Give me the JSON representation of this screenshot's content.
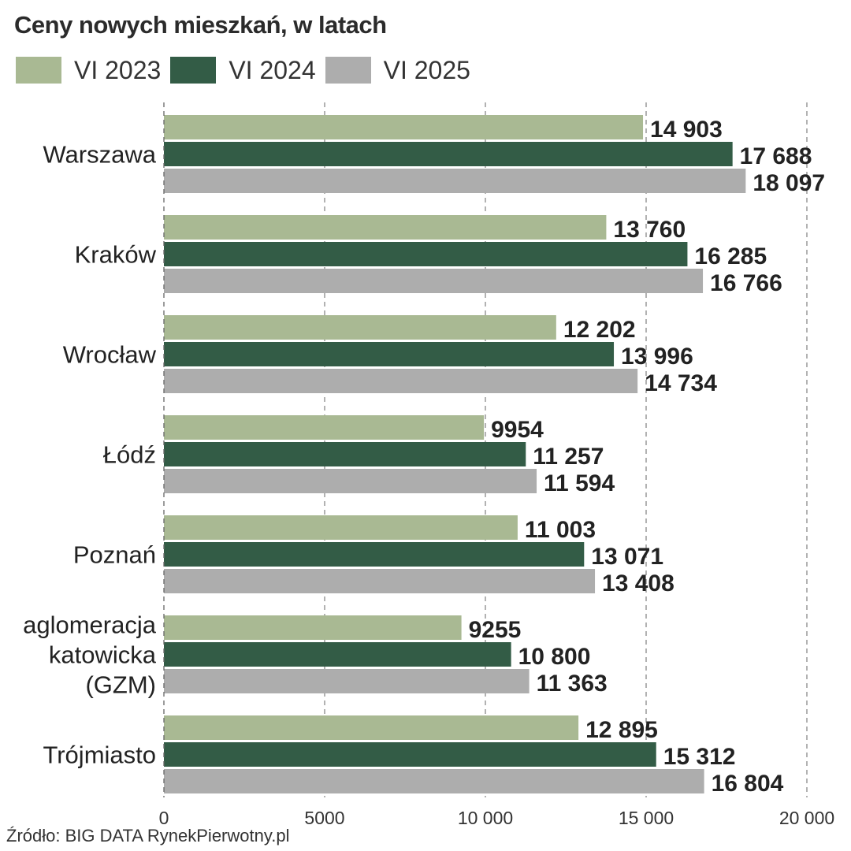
{
  "title": "Ceny nowych mieszkań, w latach",
  "source": "Źródło: BIG DATA RynekPierwotny.pl",
  "chart_data": {
    "type": "bar",
    "orientation": "horizontal",
    "title": "Ceny nowych mieszkań, w latach",
    "xlabel": "",
    "ylabel": "",
    "xlim": [
      0,
      20000
    ],
    "grid": true,
    "legend_position": "top-left",
    "ticks": [
      {
        "value": 0,
        "label": "0"
      },
      {
        "value": 5000,
        "label": "5000"
      },
      {
        "value": 10000,
        "label": "10 000"
      },
      {
        "value": 15000,
        "label": "15 000"
      },
      {
        "value": 20000,
        "label": "20 000"
      }
    ],
    "categories": [
      {
        "id": "warszawa",
        "lines": [
          "Warszawa"
        ]
      },
      {
        "id": "krakow",
        "lines": [
          "Kraków"
        ]
      },
      {
        "id": "wroclaw",
        "lines": [
          "Wrocław"
        ]
      },
      {
        "id": "lodz",
        "lines": [
          "Łódź"
        ]
      },
      {
        "id": "poznan",
        "lines": [
          "Poznań"
        ]
      },
      {
        "id": "gzm",
        "lines": [
          "aglomeracja",
          "katowicka",
          "(GZM)"
        ]
      },
      {
        "id": "trojmiasto",
        "lines": [
          "Trójmiasto"
        ]
      }
    ],
    "series": [
      {
        "name": "VI 2023",
        "color": "#a9b993",
        "values": [
          14903,
          13760,
          12202,
          9954,
          11003,
          9255,
          12895
        ],
        "labels": [
          "14 903",
          "13 760",
          "12 202",
          "9954",
          "11 003",
          "9255",
          "12 895"
        ]
      },
      {
        "name": "VI 2024",
        "color": "#335c46",
        "values": [
          17688,
          16285,
          13996,
          11257,
          13071,
          10800,
          15312
        ],
        "labels": [
          "17 688",
          "16 285",
          "13 996",
          "11 257",
          "13 071",
          "10 800",
          "15 312"
        ]
      },
      {
        "name": "VI 2025",
        "color": "#adadad",
        "values": [
          18097,
          16766,
          14734,
          11594,
          13408,
          11363,
          16804
        ],
        "labels": [
          "18 097",
          "16 766",
          "14 734",
          "11 594",
          "13 408",
          "11 363",
          "16 804"
        ]
      }
    ]
  }
}
